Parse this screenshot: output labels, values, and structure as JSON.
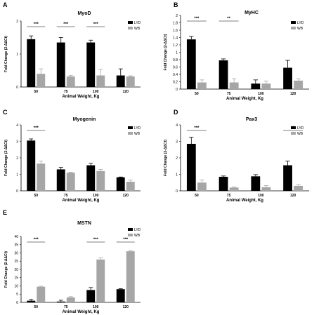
{
  "colors": {
    "lyd": "#000000",
    "wb": "#a6a6a6",
    "axis": "#000000"
  },
  "chart_data": [
    {
      "panel": "A",
      "title": "MyoD",
      "type": "bar",
      "xlabel": "Animal Weight, Kg",
      "ylabel": "Fold Change (2-ΔΔCt)",
      "categories": [
        "50",
        "75",
        "100",
        "120"
      ],
      "ylim": [
        0,
        2
      ],
      "yticks": [
        0,
        1,
        2
      ],
      "ytick_labels": [
        "0",
        "1",
        "2"
      ],
      "series": [
        {
          "name": "LYD",
          "values": [
            1.45,
            1.35,
            1.35,
            0.35
          ],
          "errors": [
            0.1,
            0.15,
            0.07,
            0.2
          ]
        },
        {
          "name": "WB",
          "values": [
            0.4,
            0.32,
            0.35,
            0.32
          ],
          "errors": [
            0.15,
            0.03,
            0.18,
            0.02
          ]
        }
      ],
      "significance": [
        {
          "category": "50",
          "label": "***"
        },
        {
          "category": "75",
          "label": "***"
        },
        {
          "category": "100",
          "label": "***"
        }
      ],
      "legend": "top-right"
    },
    {
      "panel": "B",
      "title": "MyHC",
      "type": "bar",
      "xlabel": "Animal Weight, Kg",
      "ylabel": "Fold Change (2-ΔΔCt)",
      "categories": [
        "50",
        "75",
        "100",
        "120"
      ],
      "ylim": [
        0,
        2
      ],
      "yticks": [
        0,
        0.2,
        0.4,
        0.6,
        0.8,
        1,
        1.2,
        1.4,
        1.6,
        1.8,
        2
      ],
      "ytick_labels": [
        "0",
        "0.2",
        "0.4",
        "0.6",
        "0.8",
        "1",
        "1.2",
        "1.4",
        "1.6",
        "1.8",
        "2"
      ],
      "series": [
        {
          "name": "LYD",
          "values": [
            1.35,
            0.78,
            0.15,
            0.58
          ],
          "errors": [
            0.08,
            0.04,
            0.1,
            0.2
          ]
        },
        {
          "name": "WB",
          "values": [
            0.18,
            0.18,
            0.15,
            0.23
          ],
          "errors": [
            0.07,
            0.1,
            0.07,
            0.05
          ]
        }
      ],
      "significance": [
        {
          "category": "50",
          "label": "***"
        },
        {
          "category": "75",
          "label": "**"
        }
      ],
      "legend": "top-right"
    },
    {
      "panel": "C",
      "title": "Myogenin",
      "type": "bar",
      "xlabel": "Animal Weight, Kg",
      "ylabel": "Fold Change (2-ΔΔCt)",
      "categories": [
        "50",
        "75",
        "100",
        "120"
      ],
      "ylim": [
        0,
        4
      ],
      "yticks": [
        0,
        1,
        2,
        3,
        4
      ],
      "ytick_labels": [
        "0",
        "1",
        "2",
        "3",
        "4"
      ],
      "series": [
        {
          "name": "LYD",
          "values": [
            3.05,
            1.3,
            1.55,
            0.82
          ],
          "errors": [
            0.1,
            0.12,
            0.12,
            0.02
          ]
        },
        {
          "name": "WB",
          "values": [
            1.65,
            1.1,
            1.2,
            0.55
          ],
          "errors": [
            0.15,
            0.03,
            0.1,
            0.1
          ]
        }
      ],
      "significance": [
        {
          "category": "50",
          "label": "***"
        }
      ],
      "legend": "top-right"
    },
    {
      "panel": "D",
      "title": "Pax3",
      "type": "bar",
      "xlabel": "Animal Weight, Kg",
      "ylabel": "Fold Change (2-ΔΔCt)",
      "categories": [
        "50",
        "75",
        "100",
        "120"
      ],
      "ylim": [
        0,
        4
      ],
      "yticks": [
        0,
        1,
        2,
        3,
        4
      ],
      "ytick_labels": [
        "0",
        "1",
        "2",
        "3",
        "4"
      ],
      "series": [
        {
          "name": "LYD",
          "values": [
            2.85,
            0.85,
            0.88,
            1.55
          ],
          "errors": [
            0.4,
            0.05,
            0.1,
            0.25
          ]
        },
        {
          "name": "WB",
          "values": [
            0.5,
            0.2,
            0.22,
            0.3
          ],
          "errors": [
            0.15,
            0.03,
            0.1,
            0.08
          ]
        }
      ],
      "significance": [
        {
          "category": "50",
          "label": "***"
        },
        {
          "category": "120",
          "label": "*"
        }
      ],
      "legend": "top-right"
    },
    {
      "panel": "E",
      "title": "MSTN",
      "type": "bar",
      "xlabel": "Animal Weight, Kg",
      "ylabel": "Fold Change (2-ΔΔCt)",
      "categories": [
        "50",
        "75",
        "100",
        "120"
      ],
      "ylim": [
        0,
        40
      ],
      "yticks": [
        0,
        5,
        10,
        15,
        20,
        25,
        30,
        35,
        40
      ],
      "ytick_labels": [
        "0",
        "5",
        "10",
        "15",
        "20",
        "25",
        "30",
        "35",
        "40"
      ],
      "series": [
        {
          "name": "LYD",
          "values": [
            1,
            0.5,
            7.5,
            8.0
          ],
          "errors": [
            0.8,
            0.8,
            1.5,
            0.3
          ]
        },
        {
          "name": "WB",
          "values": [
            9.5,
            3.0,
            26.0,
            31.0
          ],
          "errors": [
            0.3,
            0.5,
            1.0,
            0.3
          ]
        }
      ],
      "significance": [
        {
          "category": "50",
          "label": "***"
        },
        {
          "category": "100",
          "label": "***"
        },
        {
          "category": "120",
          "label": "***"
        }
      ],
      "legend": "top-right"
    }
  ]
}
